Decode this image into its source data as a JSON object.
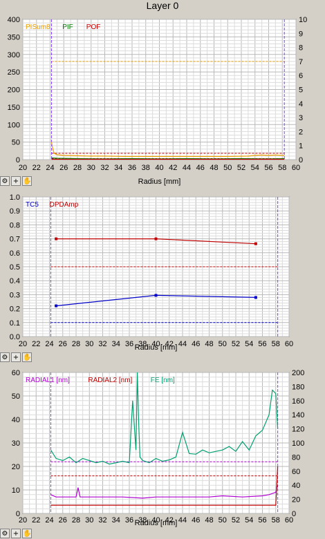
{
  "title": "Layer 0",
  "toolbar_icons": [
    "settings-icon",
    "crosshair-icon",
    "hand-pan-icon"
  ],
  "chart_data": [
    {
      "type": "line",
      "xlabel": "Radius [mm]",
      "x_ticks": [
        20,
        22,
        24,
        26,
        28,
        30,
        32,
        34,
        36,
        38,
        40,
        42,
        44,
        46,
        48,
        50,
        52,
        54,
        56,
        58,
        60
      ],
      "xlim": [
        20,
        60
      ],
      "ylim": [
        0,
        400
      ],
      "y_ticks": [
        0,
        50,
        100,
        150,
        200,
        250,
        300,
        350,
        400
      ],
      "y2lim": [
        0,
        10
      ],
      "y2_ticks": [
        0,
        1,
        2,
        3,
        4,
        5,
        6,
        7,
        8,
        9,
        10
      ],
      "grid": true,
      "legend_position": "top-left",
      "vlines": [
        24.2,
        58.3
      ],
      "series": [
        {
          "name": "PISum8",
          "color": "#e8a000",
          "style": "solid",
          "x": [
            24.2,
            24.4,
            24.6,
            25,
            26,
            28,
            30,
            32,
            35,
            40,
            45,
            50,
            53,
            54,
            55,
            56,
            57,
            58,
            58.3
          ],
          "y": [
            50,
            30,
            18,
            14,
            12,
            11,
            10,
            10,
            9,
            9,
            9,
            9,
            10,
            12,
            13,
            12,
            13,
            12,
            12
          ]
        },
        {
          "name": "PIF",
          "color": "#008000",
          "style": "solid",
          "x": [
            24.2,
            25,
            28,
            32,
            36,
            40,
            44,
            48,
            52,
            56,
            58.3
          ],
          "y": [
            5,
            4,
            3,
            2,
            3,
            2,
            3,
            2,
            3,
            2,
            3
          ]
        },
        {
          "name": "POF",
          "color": "#c00000",
          "style": "solid",
          "x": [
            24.2,
            30,
            40,
            50,
            58.3
          ],
          "y": [
            1,
            1,
            1,
            1,
            1
          ]
        }
      ],
      "limits": [
        {
          "color": "#e8a000",
          "value": 280
        },
        {
          "color": "#c00000",
          "value": 18
        },
        {
          "color": "#c00000",
          "value": 3
        }
      ]
    },
    {
      "type": "line",
      "xlabel": "Radius [mm]",
      "x_ticks": [
        20,
        22,
        24,
        26,
        28,
        30,
        32,
        34,
        36,
        38,
        40,
        42,
        44,
        46,
        48,
        50,
        52,
        54,
        56,
        58,
        60
      ],
      "xlim": [
        20,
        60
      ],
      "ylim": [
        0,
        1
      ],
      "y_ticks": [
        "0.0",
        "0.1",
        "0.2",
        "0.3",
        "0.4",
        "0.5",
        "0.6",
        "0.7",
        "0.8",
        "0.9",
        "1.0"
      ],
      "grid": true,
      "legend_position": "top-left",
      "vlines": [
        24.2,
        58.3
      ],
      "series": [
        {
          "name": "TC5",
          "color": "#0000c8",
          "style": "solid",
          "markers": true,
          "x": [
            25,
            40,
            55
          ],
          "y": [
            0.22,
            0.295,
            0.28
          ]
        },
        {
          "name": "DPDAmp",
          "color": "#c00000",
          "style": "solid",
          "markers": true,
          "x": [
            25,
            40,
            55
          ],
          "y": [
            0.7,
            0.7,
            0.665
          ]
        }
      ],
      "limits": [
        {
          "color": "#c00000",
          "value": 0.5
        },
        {
          "color": "#0000c8",
          "value": 0.1
        }
      ]
    },
    {
      "type": "line",
      "xlabel": "Radius [mm]",
      "x_ticks": [
        20,
        22,
        24,
        26,
        28,
        30,
        32,
        34,
        36,
        38,
        40,
        42,
        44,
        46,
        48,
        50,
        52,
        54,
        56,
        58,
        60
      ],
      "xlim": [
        20,
        60
      ],
      "ylim": [
        0,
        60
      ],
      "y_ticks": [
        0,
        10,
        20,
        30,
        40,
        50,
        60
      ],
      "y2lim": [
        0,
        200
      ],
      "y2_ticks": [
        0,
        20,
        40,
        60,
        80,
        100,
        120,
        140,
        160,
        180,
        200
      ],
      "grid": true,
      "legend_position": "top-left",
      "vlines": [
        24.2,
        58.3
      ],
      "series": [
        {
          "name": "RADIAL1 [nm]",
          "color": "#b000d0",
          "style": "solid",
          "x": [
            24.2,
            25,
            26,
            28,
            28.3,
            28.6,
            30,
            32,
            35,
            38,
            40,
            42,
            45,
            48,
            50,
            53,
            56,
            57,
            58,
            58.3
          ],
          "y": [
            8,
            7,
            7,
            7,
            11,
            7,
            7,
            7,
            7,
            6.5,
            7,
            7,
            7,
            7,
            7.5,
            7,
            7.5,
            8,
            9,
            12
          ]
        },
        {
          "name": "RADIAL2 [nm]",
          "color": "#c00000",
          "style": "solid",
          "x": [
            24.2,
            30,
            40,
            50,
            58,
            58.3
          ],
          "y": [
            3.5,
            3.5,
            3.5,
            3.5,
            3.5,
            20
          ]
        },
        {
          "name": "FE [nm]",
          "color": "#00a070",
          "style": "solid",
          "axis": "right",
          "x": [
            24.2,
            25,
            26,
            27,
            28,
            29,
            30,
            31,
            32,
            33,
            34,
            35,
            36,
            36.5,
            37,
            37.2,
            37.4,
            37.6,
            38,
            39,
            40,
            41,
            42,
            43,
            44,
            45,
            46,
            47,
            48,
            49,
            50,
            51,
            52,
            53,
            54,
            55,
            56,
            57,
            57.5,
            58,
            58.3
          ],
          "y": [
            90,
            78,
            75,
            80,
            72,
            78,
            75,
            72,
            74,
            70,
            72,
            74,
            72,
            160,
            90,
            200,
            130,
            80,
            75,
            72,
            78,
            74,
            76,
            80,
            115,
            85,
            84,
            90,
            86,
            88,
            90,
            95,
            88,
            102,
            90,
            110,
            118,
            140,
            175,
            170,
            120
          ]
        }
      ],
      "limits": [
        {
          "color": "#b000d0",
          "value": 22
        },
        {
          "color": "#c00000",
          "value": 16
        }
      ]
    }
  ]
}
